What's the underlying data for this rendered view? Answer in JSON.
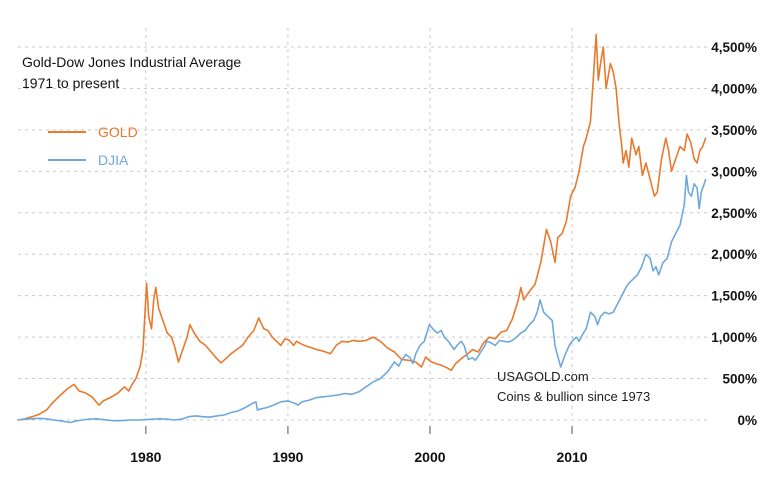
{
  "title": {
    "line1": "Gold-Dow Jones Industrial Average",
    "line2": "1971 to present"
  },
  "watermark": {
    "line1": "USAGOLD.com",
    "line2": "Coins & bullion since 1973"
  },
  "chart_data": {
    "type": "line",
    "title": "Gold-Dow Jones Industrial Average",
    "subtitle": "1971 to present",
    "xlabel": "",
    "ylabel": "",
    "xlim": [
      1971,
      2019.5
    ],
    "ylim": [
      0,
      4500
    ],
    "grid": true,
    "grid_style": "dashed",
    "legend_position": "top-left",
    "x_ticks": [
      {
        "value": 1980,
        "label": "1980"
      },
      {
        "value": 1990,
        "label": "1990"
      },
      {
        "value": 2000,
        "label": "2000"
      },
      {
        "value": 2010,
        "label": "2010"
      }
    ],
    "y_ticks": [
      {
        "value": 0,
        "label": "0%"
      },
      {
        "value": 500,
        "label": "500%"
      },
      {
        "value": 1000,
        "label": "1,000%"
      },
      {
        "value": 1500,
        "label": "1,500%"
      },
      {
        "value": 2000,
        "label": "2,000%"
      },
      {
        "value": 2500,
        "label": "2,500%"
      },
      {
        "value": 3000,
        "label": "3,000%"
      },
      {
        "value": 3500,
        "label": "3,500%"
      },
      {
        "value": 4000,
        "label": "4,000%"
      },
      {
        "value": 4500,
        "label": "4,500%"
      }
    ],
    "series": [
      {
        "name": "GOLD",
        "color": "#e87a2e",
        "points": [
          [
            1971.0,
            0
          ],
          [
            1971.5,
            15
          ],
          [
            1972.0,
            40
          ],
          [
            1972.5,
            70
          ],
          [
            1973.0,
            120
          ],
          [
            1973.5,
            220
          ],
          [
            1974.0,
            300
          ],
          [
            1974.5,
            380
          ],
          [
            1974.95,
            430
          ],
          [
            1975.3,
            350
          ],
          [
            1975.7,
            330
          ],
          [
            1976.2,
            280
          ],
          [
            1976.7,
            180
          ],
          [
            1977.0,
            230
          ],
          [
            1977.5,
            270
          ],
          [
            1978.0,
            320
          ],
          [
            1978.5,
            400
          ],
          [
            1978.8,
            350
          ],
          [
            1979.0,
            420
          ],
          [
            1979.3,
            500
          ],
          [
            1979.6,
            650
          ],
          [
            1979.8,
            850
          ],
          [
            1980.05,
            1650
          ],
          [
            1980.2,
            1250
          ],
          [
            1980.4,
            1100
          ],
          [
            1980.55,
            1450
          ],
          [
            1980.7,
            1600
          ],
          [
            1980.9,
            1350
          ],
          [
            1981.2,
            1200
          ],
          [
            1981.5,
            1050
          ],
          [
            1981.8,
            1000
          ],
          [
            1982.0,
            900
          ],
          [
            1982.3,
            700
          ],
          [
            1982.6,
            850
          ],
          [
            1982.9,
            1000
          ],
          [
            1983.1,
            1150
          ],
          [
            1983.4,
            1050
          ],
          [
            1983.8,
            950
          ],
          [
            1984.2,
            900
          ],
          [
            1984.6,
            820
          ],
          [
            1985.0,
            740
          ],
          [
            1985.3,
            690
          ],
          [
            1985.7,
            750
          ],
          [
            1986.0,
            800
          ],
          [
            1986.4,
            850
          ],
          [
            1986.8,
            900
          ],
          [
            1987.2,
            1000
          ],
          [
            1987.6,
            1080
          ],
          [
            1987.95,
            1230
          ],
          [
            1988.3,
            1100
          ],
          [
            1988.6,
            1080
          ],
          [
            1988.9,
            1000
          ],
          [
            1989.2,
            950
          ],
          [
            1989.5,
            900
          ],
          [
            1989.8,
            980
          ],
          [
            1990.1,
            960
          ],
          [
            1990.4,
            900
          ],
          [
            1990.6,
            950
          ],
          [
            1990.9,
            920
          ],
          [
            1991.3,
            890
          ],
          [
            1991.7,
            870
          ],
          [
            1992.0,
            850
          ],
          [
            1992.5,
            830
          ],
          [
            1993.0,
            800
          ],
          [
            1993.4,
            900
          ],
          [
            1993.8,
            950
          ],
          [
            1994.2,
            940
          ],
          [
            1994.6,
            960
          ],
          [
            1995.0,
            950
          ],
          [
            1995.5,
            960
          ],
          [
            1996.0,
            1000
          ],
          [
            1996.5,
            950
          ],
          [
            1997.0,
            870
          ],
          [
            1997.5,
            820
          ],
          [
            1998.0,
            730
          ],
          [
            1998.5,
            720
          ],
          [
            1999.0,
            700
          ],
          [
            1999.4,
            640
          ],
          [
            1999.7,
            760
          ],
          [
            2000.0,
            710
          ],
          [
            2000.4,
            680
          ],
          [
            2000.8,
            660
          ],
          [
            2001.2,
            630
          ],
          [
            2001.5,
            600
          ],
          [
            2001.8,
            680
          ],
          [
            2002.2,
            740
          ],
          [
            2002.6,
            790
          ],
          [
            2003.0,
            850
          ],
          [
            2003.4,
            820
          ],
          [
            2003.8,
            940
          ],
          [
            2004.2,
            1000
          ],
          [
            2004.6,
            980
          ],
          [
            2005.0,
            1060
          ],
          [
            2005.4,
            1080
          ],
          [
            2005.8,
            1220
          ],
          [
            2006.2,
            1440
          ],
          [
            2006.4,
            1600
          ],
          [
            2006.6,
            1450
          ],
          [
            2007.0,
            1550
          ],
          [
            2007.4,
            1640
          ],
          [
            2007.8,
            1900
          ],
          [
            2008.2,
            2300
          ],
          [
            2008.5,
            2150
          ],
          [
            2008.8,
            1900
          ],
          [
            2009.0,
            2200
          ],
          [
            2009.3,
            2250
          ],
          [
            2009.6,
            2400
          ],
          [
            2009.9,
            2700
          ],
          [
            2010.2,
            2800
          ],
          [
            2010.5,
            3000
          ],
          [
            2010.8,
            3300
          ],
          [
            2011.0,
            3400
          ],
          [
            2011.3,
            3600
          ],
          [
            2011.6,
            4400
          ],
          [
            2011.7,
            4650
          ],
          [
            2011.85,
            4100
          ],
          [
            2012.0,
            4300
          ],
          [
            2012.2,
            4500
          ],
          [
            2012.4,
            4000
          ],
          [
            2012.7,
            4300
          ],
          [
            2012.9,
            4200
          ],
          [
            2013.1,
            4000
          ],
          [
            2013.3,
            3600
          ],
          [
            2013.5,
            3300
          ],
          [
            2013.6,
            3100
          ],
          [
            2013.8,
            3250
          ],
          [
            2014.0,
            3050
          ],
          [
            2014.2,
            3400
          ],
          [
            2014.5,
            3200
          ],
          [
            2014.7,
            3300
          ],
          [
            2014.95,
            2950
          ],
          [
            2015.2,
            3100
          ],
          [
            2015.5,
            2900
          ],
          [
            2015.8,
            2700
          ],
          [
            2016.0,
            2750
          ],
          [
            2016.3,
            3150
          ],
          [
            2016.6,
            3400
          ],
          [
            2016.8,
            3250
          ],
          [
            2017.0,
            3000
          ],
          [
            2017.3,
            3150
          ],
          [
            2017.6,
            3300
          ],
          [
            2017.9,
            3250
          ],
          [
            2018.1,
            3450
          ],
          [
            2018.35,
            3350
          ],
          [
            2018.6,
            3150
          ],
          [
            2018.8,
            3100
          ],
          [
            2019.0,
            3250
          ],
          [
            2019.2,
            3300
          ],
          [
            2019.4,
            3400
          ]
        ]
      },
      {
        "name": "DJIA",
        "color": "#6fa8dc",
        "points": [
          [
            1971.0,
            0
          ],
          [
            1971.5,
            10
          ],
          [
            1972.0,
            15
          ],
          [
            1972.5,
            20
          ],
          [
            1973.0,
            15
          ],
          [
            1973.5,
            0
          ],
          [
            1974.0,
            -10
          ],
          [
            1974.7,
            -30
          ],
          [
            1975.0,
            -15
          ],
          [
            1975.5,
            0
          ],
          [
            1976.0,
            10
          ],
          [
            1976.5,
            15
          ],
          [
            1977.0,
            5
          ],
          [
            1977.5,
            -5
          ],
          [
            1978.0,
            -10
          ],
          [
            1978.5,
            -5
          ],
          [
            1979.0,
            0
          ],
          [
            1979.5,
            0
          ],
          [
            1980.0,
            5
          ],
          [
            1980.5,
            10
          ],
          [
            1981.0,
            15
          ],
          [
            1981.5,
            10
          ],
          [
            1982.0,
            0
          ],
          [
            1982.5,
            10
          ],
          [
            1983.0,
            40
          ],
          [
            1983.5,
            50
          ],
          [
            1984.0,
            40
          ],
          [
            1984.5,
            35
          ],
          [
            1985.0,
            50
          ],
          [
            1985.5,
            60
          ],
          [
            1986.0,
            90
          ],
          [
            1986.5,
            110
          ],
          [
            1987.0,
            150
          ],
          [
            1987.5,
            200
          ],
          [
            1987.75,
            220
          ],
          [
            1987.85,
            120
          ],
          [
            1988.0,
            130
          ],
          [
            1988.5,
            150
          ],
          [
            1989.0,
            180
          ],
          [
            1989.5,
            220
          ],
          [
            1990.0,
            230
          ],
          [
            1990.5,
            200
          ],
          [
            1990.7,
            180
          ],
          [
            1991.0,
            220
          ],
          [
            1991.5,
            240
          ],
          [
            1992.0,
            270
          ],
          [
            1992.5,
            280
          ],
          [
            1993.0,
            290
          ],
          [
            1993.5,
            300
          ],
          [
            1994.0,
            320
          ],
          [
            1994.5,
            310
          ],
          [
            1995.0,
            340
          ],
          [
            1995.5,
            400
          ],
          [
            1996.0,
            460
          ],
          [
            1996.5,
            500
          ],
          [
            1997.0,
            580
          ],
          [
            1997.5,
            700
          ],
          [
            1997.8,
            650
          ],
          [
            1998.0,
            720
          ],
          [
            1998.3,
            790
          ],
          [
            1998.6,
            750
          ],
          [
            1998.8,
            680
          ],
          [
            1999.0,
            800
          ],
          [
            1999.3,
            900
          ],
          [
            1999.6,
            950
          ],
          [
            1999.95,
            1150
          ],
          [
            2000.2,
            1100
          ],
          [
            2000.5,
            1050
          ],
          [
            2000.8,
            1080
          ],
          [
            2001.0,
            1000
          ],
          [
            2001.3,
            950
          ],
          [
            2001.7,
            850
          ],
          [
            2001.9,
            900
          ],
          [
            2002.2,
            950
          ],
          [
            2002.4,
            900
          ],
          [
            2002.7,
            730
          ],
          [
            2003.0,
            750
          ],
          [
            2003.2,
            720
          ],
          [
            2003.5,
            800
          ],
          [
            2003.8,
            880
          ],
          [
            2004.0,
            950
          ],
          [
            2004.3,
            930
          ],
          [
            2004.6,
            900
          ],
          [
            2004.9,
            960
          ],
          [
            2005.2,
            950
          ],
          [
            2005.5,
            940
          ],
          [
            2005.8,
            960
          ],
          [
            2006.1,
            1000
          ],
          [
            2006.4,
            1050
          ],
          [
            2006.7,
            1080
          ],
          [
            2007.0,
            1150
          ],
          [
            2007.3,
            1200
          ],
          [
            2007.55,
            1300
          ],
          [
            2007.75,
            1450
          ],
          [
            2008.0,
            1300
          ],
          [
            2008.3,
            1250
          ],
          [
            2008.6,
            1200
          ],
          [
            2008.8,
            900
          ],
          [
            2008.95,
            800
          ],
          [
            2009.2,
            640
          ],
          [
            2009.5,
            780
          ],
          [
            2009.8,
            900
          ],
          [
            2010.0,
            950
          ],
          [
            2010.3,
            1000
          ],
          [
            2010.5,
            950
          ],
          [
            2010.8,
            1050
          ],
          [
            2011.0,
            1100
          ],
          [
            2011.3,
            1300
          ],
          [
            2011.6,
            1250
          ],
          [
            2011.8,
            1150
          ],
          [
            2012.0,
            1250
          ],
          [
            2012.3,
            1300
          ],
          [
            2012.6,
            1280
          ],
          [
            2012.9,
            1300
          ],
          [
            2013.2,
            1400
          ],
          [
            2013.5,
            1500
          ],
          [
            2013.8,
            1600
          ],
          [
            2014.0,
            1650
          ],
          [
            2014.3,
            1700
          ],
          [
            2014.6,
            1750
          ],
          [
            2014.9,
            1850
          ],
          [
            2015.2,
            2000
          ],
          [
            2015.5,
            1950
          ],
          [
            2015.7,
            1800
          ],
          [
            2015.9,
            1850
          ],
          [
            2016.1,
            1750
          ],
          [
            2016.4,
            1900
          ],
          [
            2016.7,
            1950
          ],
          [
            2017.0,
            2150
          ],
          [
            2017.3,
            2250
          ],
          [
            2017.6,
            2350
          ],
          [
            2017.9,
            2600
          ],
          [
            2018.05,
            2950
          ],
          [
            2018.2,
            2750
          ],
          [
            2018.4,
            2700
          ],
          [
            2018.6,
            2850
          ],
          [
            2018.8,
            2800
          ],
          [
            2018.95,
            2550
          ],
          [
            2019.1,
            2750
          ],
          [
            2019.3,
            2850
          ],
          [
            2019.4,
            2900
          ]
        ]
      }
    ]
  }
}
